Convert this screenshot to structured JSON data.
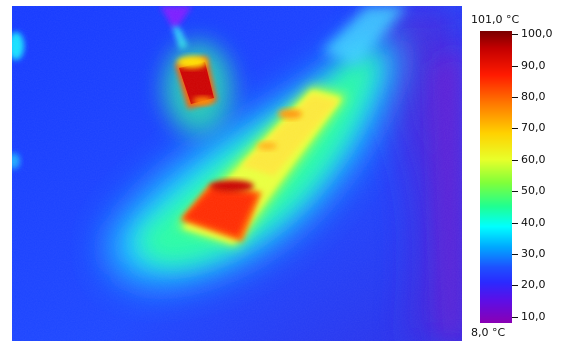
{
  "scale": {
    "max_label": "101,0 °C",
    "min_label": "8,0 °C",
    "ticks": [
      {
        "value": 100,
        "label": "100,0"
      },
      {
        "value": 90,
        "label": "90,0"
      },
      {
        "value": 80,
        "label": "80,0"
      },
      {
        "value": 70,
        "label": "70,0"
      },
      {
        "value": 60,
        "label": "60,0"
      },
      {
        "value": 50,
        "label": "50,0"
      },
      {
        "value": 40,
        "label": "40,0"
      },
      {
        "value": 30,
        "label": "30,0"
      },
      {
        "value": 20,
        "label": "20,0"
      },
      {
        "value": 10,
        "label": "10,0"
      }
    ],
    "range": [
      8.0,
      101.0
    ]
  }
}
